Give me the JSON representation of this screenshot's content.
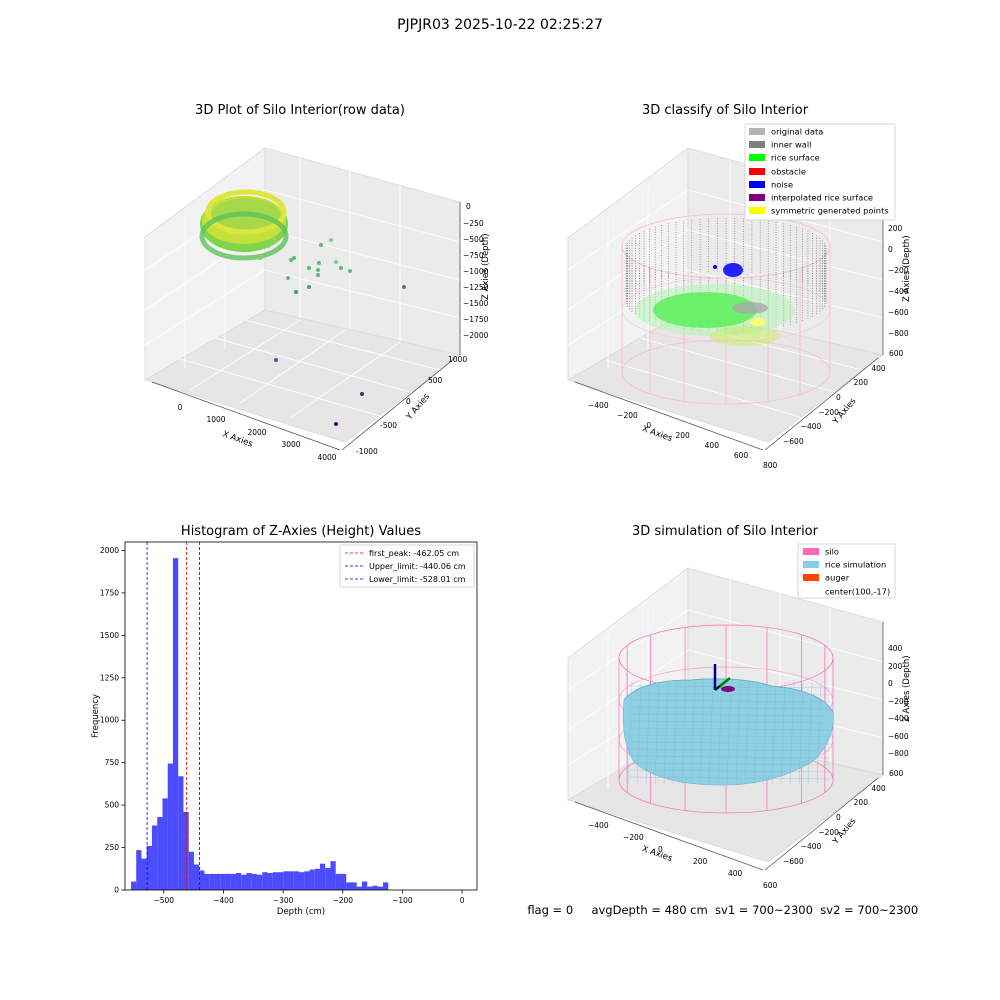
{
  "suptitle": "PJPJR03 2025-10-22 02:25:27",
  "footer": {
    "flag": "flag = 0",
    "avg_depth": "avgDepth = 480 cm",
    "sv1": "sv1 = 700~2300",
    "sv2": "sv2 = 700~2300"
  },
  "panels": {
    "raw": {
      "title": "3D Plot of Silo Interior(row data)",
      "xlabel": "X Axies",
      "ylabel": "Y Axies",
      "zlabel": "Z Axies (Depth)",
      "xticks": [
        "0",
        "1000",
        "2000",
        "3000",
        "4000"
      ],
      "yticks": [
        "-1000",
        "-500",
        "0",
        "500",
        "1000"
      ],
      "zticks": [
        "0",
        "−250",
        "−500",
        "−750",
        "−1000",
        "−1250",
        "−1500",
        "−1750",
        "−2000"
      ]
    },
    "classify": {
      "title": "3D classify of Silo Interior",
      "xlabel": "X Axies",
      "ylabel": "Y Axies",
      "zlabel": "Z Axies (Depth)",
      "xticks": [
        "−400",
        "−200",
        "0",
        "200",
        "400",
        "600",
        "800"
      ],
      "yticks": [
        "−600",
        "−400",
        "−200",
        "0",
        "200",
        "400",
        "600"
      ],
      "zticks": [
        "200",
        "0",
        "−200",
        "−400",
        "−600",
        "−800"
      ],
      "legend": [
        {
          "label": "original data",
          "color": "#b3b3b3"
        },
        {
          "label": "inner wall",
          "color": "#808080"
        },
        {
          "label": "rice surface",
          "color": "#00ff00"
        },
        {
          "label": "obstacle",
          "color": "#ff0000"
        },
        {
          "label": "noise",
          "color": "#0000ff"
        },
        {
          "label": "interpolated rice surface",
          "color": "#800080"
        },
        {
          "label": "symmetric generated points",
          "color": "#ffff00"
        }
      ]
    },
    "simulation": {
      "title": "3D simulation of Silo Interior",
      "xlabel": "X Axies",
      "ylabel": "Y Axies",
      "zlabel": "Z Axies (Depth)",
      "xticks": [
        "−400",
        "−200",
        "0",
        "200",
        "400",
        "600"
      ],
      "yticks": [
        "−600",
        "−400",
        "−200",
        "0",
        "200",
        "400",
        "600"
      ],
      "zticks": [
        "400",
        "200",
        "0",
        "−200",
        "−400",
        "−600",
        "−800"
      ],
      "legend": [
        {
          "label": "silo",
          "color": "#ff69b4"
        },
        {
          "label": "rice simulation",
          "color": "#87ceeb"
        },
        {
          "label": "auger",
          "color": "#ff4500"
        },
        {
          "label": "center(100,-17)",
          "color": ""
        }
      ]
    }
  },
  "chart_data": {
    "type": "bar",
    "title": "Histogram of Z-Axies (Height) Values",
    "xlabel": "Depth (cm)",
    "ylabel": "Frequency",
    "xlim": [
      -565,
      25
    ],
    "ylim": [
      0,
      2050
    ],
    "xticks": [
      -500,
      -400,
      -300,
      -200,
      -100,
      0
    ],
    "yticks": [
      0,
      250,
      500,
      750,
      1000,
      1250,
      1500,
      1750,
      2000
    ],
    "bar_color": "#0000ff",
    "bar_alpha": 0.7,
    "bin_start": -555,
    "bin_width": 8.8,
    "counts": [
      50,
      235,
      185,
      260,
      380,
      430,
      540,
      745,
      1955,
      670,
      460,
      225,
      150,
      115,
      95,
      95,
      95,
      95,
      95,
      95,
      100,
      90,
      100,
      95,
      90,
      105,
      100,
      105,
      105,
      110,
      110,
      110,
      105,
      110,
      120,
      125,
      155,
      130,
      170,
      95,
      95,
      45,
      45,
      20,
      50,
      20,
      25,
      20,
      45
    ],
    "lines": [
      {
        "label": "first_peak: -462.05 cm",
        "x": -462.05,
        "color": "#ff0000"
      },
      {
        "label": "Upper_limit: -440.06 cm",
        "x": -440.06,
        "color": "#0000ff"
      },
      {
        "label": "Lower_limit: -528.01 cm",
        "x": -528.01,
        "color": "#0000ff"
      }
    ],
    "legend_position": "upper right"
  }
}
